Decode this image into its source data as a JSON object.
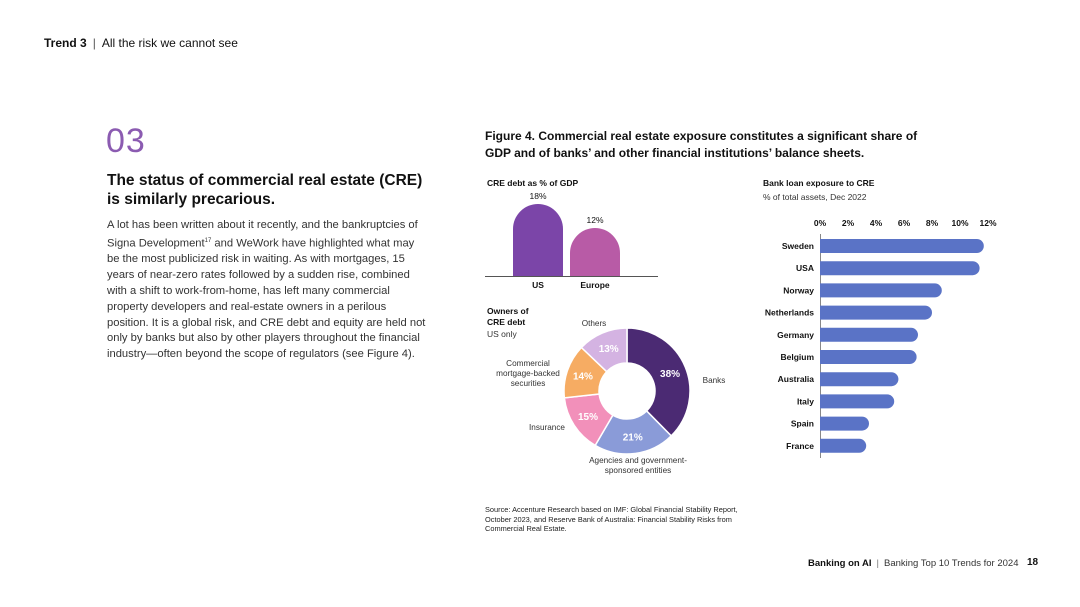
{
  "header": {
    "trend": "Trend 3",
    "separator": "|",
    "subtitle": "All the risk we cannot see"
  },
  "section": {
    "number": "03",
    "title": "The status of commercial real estate (CRE) is similarly precarious.",
    "body_before_sup": "A lot has been written about it recently, and the bankruptcies of Signa Development",
    "body_sup": "17",
    "body_after_sup": " and WeWork have highlighted what may be the most publicized risk in waiting. As with mortgages, 15 years of near-zero rates followed by a sudden rise, combined with a shift to work-from-home, has left many commercial property developers and real-estate owners in a perilous position. It is a global risk, and CRE debt and equity are held not only by banks but also by other players throughout the financial industry—often beyond the scope of regulators (see Figure 4)."
  },
  "figure": {
    "title": "Figure 4. Commercial real estate exposure constitutes a significant share of GDP and of banks’ and other financial institutions’ balance sheets.",
    "source": "Source: Accenture Research based on IMF: Global Financial Stability Report, October 2023, and Reserve Bank of Australia: Financial Stability Risks from Commercial Real Estate."
  },
  "chart_data": [
    {
      "type": "bar",
      "title": "CRE debt as % of GDP",
      "categories": [
        "US",
        "Europe"
      ],
      "values": [
        18,
        12
      ],
      "value_labels": [
        "18%",
        "12%"
      ],
      "colors": [
        "#7b45a8",
        "#b85ba6"
      ]
    },
    {
      "type": "pie",
      "title": "Owners of CRE debt",
      "subtitle": "US only",
      "labels": [
        "Banks",
        "Agencies and government-sponsored entities",
        "Insurance",
        "Commercial mortgage-backed securities",
        "Others"
      ],
      "values": [
        38,
        21,
        15,
        14,
        13
      ],
      "value_labels": [
        "38%",
        "21%",
        "15%",
        "14%",
        "13%"
      ],
      "colors": [
        "#4b2a73",
        "#8a9bd8",
        "#f290ba",
        "#f6ac63",
        "#d4b3e2"
      ]
    },
    {
      "type": "bar",
      "orientation": "horizontal",
      "title": "Bank loan exposure to CRE",
      "subtitle": "% of total assets, Dec 2022",
      "categories": [
        "Sweden",
        "USA",
        "Norway",
        "Netherlands",
        "Germany",
        "Belgium",
        "Australia",
        "Italy",
        "Spain",
        "France"
      ],
      "values": [
        11.7,
        11.4,
        8.7,
        8.0,
        7.0,
        6.9,
        5.6,
        5.3,
        3.5,
        3.3
      ],
      "xlim": [
        0,
        12
      ],
      "x_ticks": [
        "0%",
        "2%",
        "4%",
        "6%",
        "8%",
        "10%",
        "12%"
      ],
      "color": "#5a73c6"
    }
  ],
  "footer": {
    "brand": "Banking on AI",
    "separator": "|",
    "report": "Banking Top 10 Trends for 2024",
    "page": "18"
  }
}
